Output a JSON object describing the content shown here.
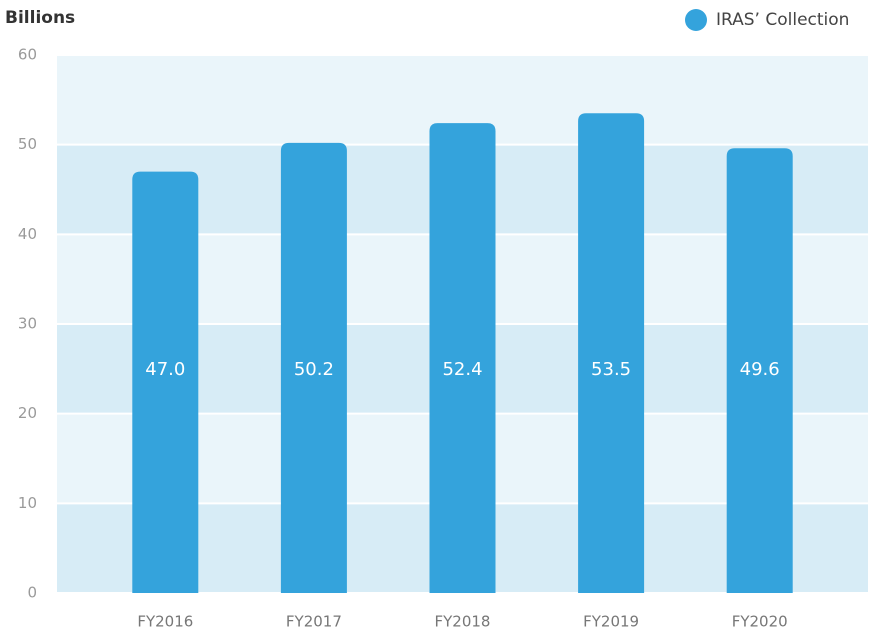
{
  "chart_data": {
    "type": "bar",
    "y_label": "Billions",
    "categories": [
      "FY2016",
      "FY2017",
      "FY2018",
      "FY2019",
      "FY2020"
    ],
    "series": [
      {
        "name": "IRAS’ Collection",
        "color": "#34a3dc",
        "values": [
          47.0,
          50.2,
          52.4,
          53.5,
          49.6
        ],
        "value_labels": [
          "47.0",
          "50.2",
          "52.4",
          "53.5",
          "49.6"
        ]
      }
    ],
    "ylim": [
      0,
      60
    ],
    "yticks": [
      0,
      10,
      20,
      30,
      40,
      50,
      60
    ],
    "grid": true,
    "legend": "top-right"
  }
}
